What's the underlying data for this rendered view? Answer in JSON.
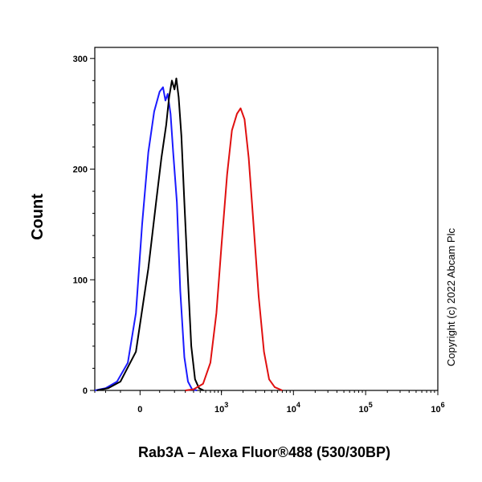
{
  "chart_data": {
    "type": "line",
    "title": "",
    "xlabel": "Rab3A – Alexa Fluor®488 (530/30BP)",
    "ylabel": "Count",
    "x_scale": "biexponential",
    "x_tick_labels": [
      {
        "base": "0",
        "exp": ""
      },
      {
        "base": "10",
        "exp": "3"
      },
      {
        "base": "10",
        "exp": "4"
      },
      {
        "base": "10",
        "exp": "5"
      },
      {
        "base": "10",
        "exp": "6"
      }
    ],
    "y_tick_labels": [
      "0",
      "100",
      "200",
      "300"
    ],
    "ylim": [
      0,
      310
    ],
    "grid": false,
    "legend": "none",
    "copyright": "Copyright (c) 2022 Abcam Plc",
    "series": [
      {
        "color": "#1a1aff",
        "points": [
          [
            -300,
            0
          ],
          [
            -200,
            2
          ],
          [
            -120,
            8
          ],
          [
            -60,
            25
          ],
          [
            -20,
            70
          ],
          [
            10,
            150
          ],
          [
            40,
            215
          ],
          [
            70,
            252
          ],
          [
            100,
            270
          ],
          [
            120,
            274
          ],
          [
            135,
            262
          ],
          [
            150,
            268
          ],
          [
            170,
            250
          ],
          [
            190,
            215
          ],
          [
            220,
            170
          ],
          [
            250,
            90
          ],
          [
            290,
            30
          ],
          [
            330,
            8
          ],
          [
            380,
            1
          ],
          [
            450,
            0
          ]
        ]
      },
      {
        "color": "#000000",
        "points": [
          [
            -280,
            0
          ],
          [
            -180,
            2
          ],
          [
            -100,
            8
          ],
          [
            -20,
            35
          ],
          [
            40,
            110
          ],
          [
            80,
            170
          ],
          [
            110,
            210
          ],
          [
            140,
            240
          ],
          [
            160,
            265
          ],
          [
            180,
            280
          ],
          [
            200,
            272
          ],
          [
            215,
            282
          ],
          [
            235,
            265
          ],
          [
            260,
            230
          ],
          [
            290,
            170
          ],
          [
            330,
            100
          ],
          [
            370,
            40
          ],
          [
            420,
            10
          ],
          [
            480,
            2
          ],
          [
            560,
            0
          ]
        ]
      },
      {
        "color": "#e01010",
        "points": [
          [
            300,
            0
          ],
          [
            400,
            1
          ],
          [
            550,
            6
          ],
          [
            700,
            25
          ],
          [
            850,
            70
          ],
          [
            1000,
            130
          ],
          [
            1200,
            195
          ],
          [
            1400,
            235
          ],
          [
            1650,
            250
          ],
          [
            1850,
            255
          ],
          [
            2100,
            245
          ],
          [
            2400,
            210
          ],
          [
            2800,
            150
          ],
          [
            3300,
            85
          ],
          [
            3900,
            35
          ],
          [
            4600,
            10
          ],
          [
            5500,
            3
          ],
          [
            7000,
            0
          ]
        ]
      }
    ]
  }
}
